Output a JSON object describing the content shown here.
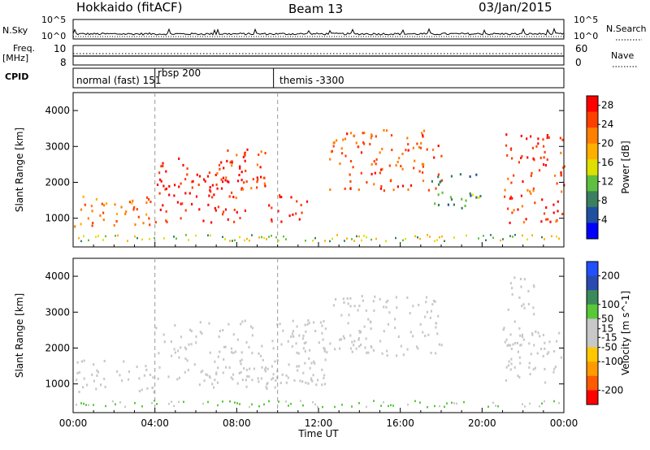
{
  "header": {
    "title": "Hokkaido (fitACF)",
    "beam": "Beam 13",
    "date": "03/Jan/2015"
  },
  "panels": {
    "nsky_label": "N.Sky",
    "nsky_ticks": [
      "10^5",
      "10^0"
    ],
    "nsky_right_ticks": [
      "10^5",
      "10^0"
    ],
    "nsearch_label": "N.Search",
    "freq_label": "Freq.",
    "freq_unit": "[MHz]",
    "freq_ticks": [
      "10",
      "8"
    ],
    "nave_ticks": [
      "60",
      "0"
    ],
    "nave_label": "Nave",
    "cpid_label": "CPID",
    "cpid_segments": [
      {
        "label": "normal (fast) 151",
        "start_hour": 0
      },
      {
        "label": "rbsp 200",
        "start_hour": 4
      },
      {
        "label": "themis -3300",
        "start_hour": 9.8
      }
    ]
  },
  "colors": {
    "power_scale": [
      "#0000ff",
      "#1f4fa0",
      "#3a7f5f",
      "#5fbf3f",
      "#dfdf00",
      "#ffaf00",
      "#ff7f00",
      "#ff3f00",
      "#ff0000"
    ],
    "velocity_scale": [
      "#ff0000",
      "#ff5a00",
      "#ff9a00",
      "#ffc800",
      "#c8c8c8",
      "#c8c8c8",
      "#58c838",
      "#3a8a5a",
      "#2a4ab0",
      "#2050ff"
    ],
    "ground_scatter": "#bfbfbf"
  },
  "chart_data": [
    {
      "type": "heatmap",
      "name": "power",
      "title": "",
      "xlabel": "",
      "ylabel": "Slant Range [km]",
      "x_range_hours": [
        0,
        24
      ],
      "ylim": [
        200,
        4500
      ],
      "y_ticks": [
        1000,
        2000,
        3000,
        4000
      ],
      "colorbar": {
        "label": "Power [dB]",
        "ticks": [
          4,
          8,
          12,
          16,
          20,
          24,
          28
        ],
        "range": [
          0,
          30
        ]
      },
      "features": [
        {
          "t0": 0,
          "t1": 4,
          "r0": 800,
          "r1": 1700,
          "level": 22,
          "note": "band"
        },
        {
          "t0": 4,
          "t1": 8.5,
          "r0": 900,
          "r1": 2700,
          "level": 28,
          "note": "diagonal arcs"
        },
        {
          "t0": 7.0,
          "t1": 9.5,
          "r0": 1500,
          "r1": 3000,
          "level": 26,
          "note": "loops near 07 and 08 UT"
        },
        {
          "t0": 9.5,
          "t1": 11.5,
          "r0": 900,
          "r1": 1700,
          "level": 28
        },
        {
          "t0": 12.5,
          "t1": 18.0,
          "r0": 1800,
          "r1": 3500,
          "level": 24
        },
        {
          "t0": 17.5,
          "t1": 20.0,
          "r0": 1300,
          "r1": 2300,
          "level": 10
        },
        {
          "t0": 21.0,
          "t1": 24.0,
          "r0": 900,
          "r1": 3400,
          "level": 26,
          "note": "diagonal arcs"
        }
      ]
    },
    {
      "type": "heatmap",
      "name": "velocity",
      "title": "",
      "xlabel": "Time UT",
      "ylabel": "Slant Range [km]",
      "x_range_hours": [
        0,
        24
      ],
      "x_tick_labels": [
        "00:00",
        "04:00",
        "08:00",
        "12:00",
        "16:00",
        "20:00",
        "00:00"
      ],
      "ylim": [
        200,
        4500
      ],
      "y_ticks": [
        1000,
        2000,
        3000,
        4000
      ],
      "colorbar": {
        "label": "Velocity [m s^-1]",
        "ticks": [
          200,
          100,
          50,
          15,
          -15,
          -50,
          -100,
          -200
        ],
        "range": [
          -250,
          250
        ]
      },
      "features": [
        {
          "t0": 0,
          "t1": 4,
          "r0": 800,
          "r1": 1700,
          "level": 0,
          "note": "ground scatter"
        },
        {
          "t0": 4,
          "t1": 12.5,
          "r0": 1000,
          "r1": 2800,
          "level": 0
        },
        {
          "t0": 6.5,
          "t1": 11.5,
          "r0": 900,
          "r1": 1500,
          "level": 40
        },
        {
          "t0": 12.5,
          "t1": 18.0,
          "r0": 1800,
          "r1": 3500,
          "level": 0
        },
        {
          "t0": 21.0,
          "t1": 24.0,
          "r0": 1000,
          "r1": 2500,
          "level": 0
        },
        {
          "t0": 21.0,
          "t1": 22.5,
          "r0": 2000,
          "r1": 4000,
          "level": 45
        }
      ]
    }
  ]
}
